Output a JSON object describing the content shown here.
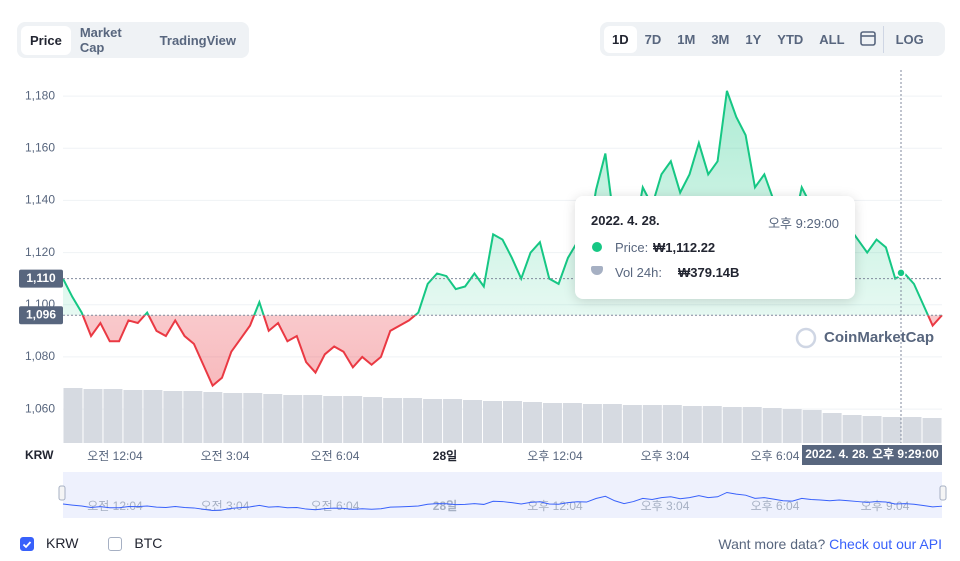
{
  "tabs": [
    "Price",
    "Market Cap",
    "TradingView"
  ],
  "ranges": [
    "1D",
    "7D",
    "1M",
    "3M",
    "1Y",
    "YTD",
    "ALL"
  ],
  "log_button": "LOG",
  "chart_data": {
    "type": "line",
    "axis_label": "KRW",
    "xtick_labels": [
      "오전 12:04",
      "오전 3:04",
      "오전 6:04",
      "28일",
      "오후 12:04",
      "오후 3:04",
      "오후 6:04"
    ],
    "navigator_labels": [
      "오전 12:04",
      "오전 3:04",
      "오전 6:04",
      "28일",
      "오후 12:04",
      "오후 3:04",
      "오후 6:04",
      "오후 9:04"
    ],
    "ylim": [
      1047,
      1190
    ],
    "yticks": [
      {
        "value": 1060,
        "label": "1,060"
      },
      {
        "value": 1080,
        "label": "1,080"
      },
      {
        "value": 1100,
        "label": "1,100"
      },
      {
        "value": 1120,
        "label": "1,120"
      },
      {
        "value": 1140,
        "label": "1,140"
      },
      {
        "value": 1160,
        "label": "1,160"
      },
      {
        "value": 1180,
        "label": "1,180"
      }
    ],
    "baseline": {
      "value": 1096,
      "label": "1,096"
    },
    "crosshair": {
      "value": 1110,
      "label": "1,110"
    },
    "series": [
      {
        "name": "Price",
        "up_color": "#16c784",
        "down_color": "#ea3943",
        "values": [
          1110,
          1103,
          1097,
          1088,
          1093,
          1086,
          1086,
          1094,
          1093,
          1097,
          1090,
          1088,
          1094,
          1088,
          1085,
          1077,
          1069,
          1072,
          1082,
          1087,
          1092,
          1101,
          1090,
          1093,
          1086,
          1088,
          1078,
          1074,
          1081,
          1084,
          1082,
          1076,
          1080,
          1077,
          1080,
          1090,
          1092,
          1094,
          1097,
          1108,
          1112,
          1111,
          1106,
          1107,
          1112,
          1107,
          1127,
          1125,
          1118,
          1110,
          1120,
          1124,
          1110,
          1108,
          1118,
          1124,
          1122,
          1144,
          1158,
          1130,
          1112,
          1125,
          1145,
          1138,
          1150,
          1155,
          1143,
          1150,
          1162,
          1150,
          1155,
          1182,
          1172,
          1165,
          1145,
          1150,
          1140,
          1130,
          1128,
          1145,
          1138,
          1135,
          1130,
          1135,
          1130,
          1125,
          1120,
          1125,
          1122,
          1110,
          1112,
          1108,
          1100,
          1092,
          1096
        ]
      }
    ],
    "volume": [
      55,
      54,
      54,
      53,
      53,
      52,
      52,
      51,
      50,
      50,
      49,
      48,
      48,
      47,
      47,
      46,
      45,
      45,
      44,
      44,
      43,
      42,
      42,
      41,
      40,
      40,
      39,
      39,
      38,
      38,
      38,
      37,
      37,
      36,
      36,
      35,
      34,
      33,
      30,
      28,
      27,
      26,
      26,
      25
    ],
    "hover": {
      "value": 1112.22,
      "time_label": "2022. 4. 28. 오후 9:29:00"
    }
  },
  "tooltip": {
    "date": "2022. 4. 28.",
    "time": "오후 9:29:00",
    "price_label": "Price:",
    "price": "₩1,112.22",
    "vol_label": "Vol 24h:",
    "vol": "₩379.14B"
  },
  "watermark": "CoinMarketCap",
  "legend": [
    {
      "name": "KRW",
      "checked": true
    },
    {
      "name": "BTC",
      "checked": false
    }
  ],
  "footer": {
    "text": "Want more data?",
    "link": "Check out our API"
  }
}
